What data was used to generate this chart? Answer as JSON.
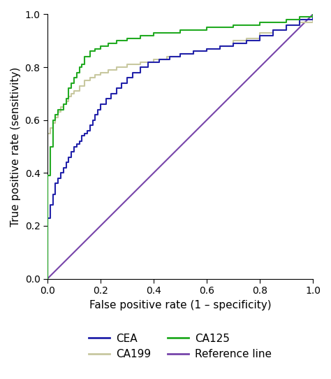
{
  "title": "",
  "xlabel": "False positive rate (1 – specificity)",
  "ylabel": "True positive rate (sensitivity)",
  "xlim": [
    0,
    1
  ],
  "ylim": [
    0,
    1
  ],
  "xticks": [
    0.0,
    0.2,
    0.4,
    0.6,
    0.8,
    1.0
  ],
  "yticks": [
    0.0,
    0.2,
    0.4,
    0.6,
    0.8,
    1.0
  ],
  "colors": {
    "CEA": "#2222aa",
    "CA125": "#22aa22",
    "CA199": "#c8c8a0",
    "Reference": "#7744aa"
  },
  "figsize": [
    4.74,
    5.42
  ],
  "dpi": 100,
  "CEA_fpr": [
    0.0,
    0.0,
    0.0,
    0.01,
    0.01,
    0.01,
    0.02,
    0.02,
    0.02,
    0.03,
    0.03,
    0.03,
    0.04,
    0.04,
    0.05,
    0.05,
    0.06,
    0.06,
    0.07,
    0.07,
    0.08,
    0.08,
    0.09,
    0.09,
    0.1,
    0.1,
    0.11,
    0.12,
    0.13,
    0.14,
    0.15,
    0.16,
    0.17,
    0.18,
    0.19,
    0.2,
    0.22,
    0.24,
    0.26,
    0.28,
    0.3,
    0.32,
    0.35,
    0.38,
    0.42,
    0.46,
    0.5,
    0.55,
    0.6,
    0.65,
    0.7,
    0.75,
    0.8,
    0.85,
    0.9,
    0.95,
    1.0
  ],
  "CEA_tpr": [
    0.0,
    0.15,
    0.23,
    0.23,
    0.26,
    0.28,
    0.28,
    0.3,
    0.32,
    0.32,
    0.34,
    0.36,
    0.36,
    0.38,
    0.38,
    0.4,
    0.4,
    0.42,
    0.42,
    0.44,
    0.44,
    0.46,
    0.46,
    0.48,
    0.48,
    0.5,
    0.51,
    0.52,
    0.54,
    0.55,
    0.56,
    0.58,
    0.6,
    0.62,
    0.64,
    0.66,
    0.68,
    0.7,
    0.72,
    0.74,
    0.76,
    0.78,
    0.8,
    0.82,
    0.83,
    0.84,
    0.85,
    0.86,
    0.87,
    0.88,
    0.89,
    0.9,
    0.92,
    0.94,
    0.96,
    0.98,
    1.0
  ],
  "CA125_fpr": [
    0.0,
    0.0,
    0.0,
    0.01,
    0.01,
    0.01,
    0.02,
    0.02,
    0.02,
    0.03,
    0.03,
    0.04,
    0.04,
    0.05,
    0.06,
    0.07,
    0.08,
    0.09,
    0.1,
    0.11,
    0.12,
    0.13,
    0.14,
    0.16,
    0.18,
    0.2,
    0.23,
    0.26,
    0.3,
    0.35,
    0.4,
    0.45,
    0.5,
    0.55,
    0.6,
    0.65,
    0.7,
    0.75,
    0.8,
    0.85,
    0.9,
    0.95,
    1.0
  ],
  "CA125_tpr": [
    0.0,
    0.16,
    0.39,
    0.39,
    0.48,
    0.5,
    0.5,
    0.57,
    0.6,
    0.6,
    0.62,
    0.62,
    0.64,
    0.64,
    0.66,
    0.68,
    0.72,
    0.74,
    0.76,
    0.78,
    0.8,
    0.81,
    0.84,
    0.86,
    0.87,
    0.88,
    0.89,
    0.9,
    0.91,
    0.92,
    0.93,
    0.93,
    0.94,
    0.94,
    0.95,
    0.95,
    0.96,
    0.96,
    0.97,
    0.97,
    0.98,
    0.99,
    1.0
  ],
  "CA199_fpr": [
    0.0,
    0.0,
    0.01,
    0.01,
    0.02,
    0.02,
    0.03,
    0.03,
    0.04,
    0.04,
    0.05,
    0.05,
    0.06,
    0.07,
    0.08,
    0.09,
    0.1,
    0.12,
    0.14,
    0.16,
    0.18,
    0.2,
    0.23,
    0.26,
    0.3,
    0.35,
    0.4,
    0.45,
    0.5,
    0.55,
    0.6,
    0.65,
    0.7,
    0.75,
    0.8,
    0.85,
    0.9,
    0.95,
    1.0
  ],
  "CA199_tpr": [
    0.0,
    0.55,
    0.55,
    0.57,
    0.57,
    0.59,
    0.59,
    0.61,
    0.61,
    0.63,
    0.63,
    0.65,
    0.66,
    0.67,
    0.69,
    0.7,
    0.71,
    0.73,
    0.75,
    0.76,
    0.77,
    0.78,
    0.79,
    0.8,
    0.81,
    0.82,
    0.83,
    0.84,
    0.85,
    0.86,
    0.87,
    0.88,
    0.9,
    0.91,
    0.93,
    0.94,
    0.96,
    0.97,
    1.0
  ]
}
